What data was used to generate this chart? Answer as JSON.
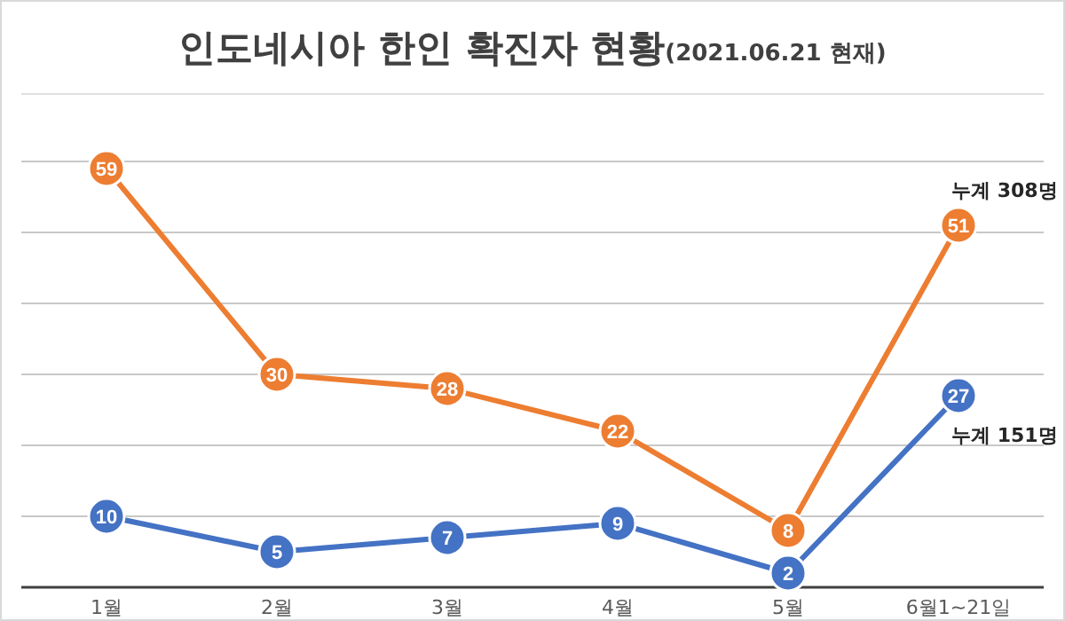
{
  "chart_data": {
    "type": "line",
    "title": "인도네시아 한인 확진자 현황(2021.06.21 현재)",
    "categories": [
      "1월",
      "2월",
      "3월",
      "4월",
      "5월",
      "6월1~21일"
    ],
    "series": [
      {
        "color": "#ed7d31",
        "values": [
          59,
          30,
          28,
          22,
          8,
          51
        ]
      },
      {
        "color": "#4472c4",
        "values": [
          10,
          5,
          7,
          9,
          2,
          27
        ]
      }
    ],
    "ylim": [
      0,
      60
    ],
    "yticks": [
      {
        "value": 0,
        "label": null
      },
      {
        "value": 10,
        "label": null
      },
      {
        "value": 20,
        "label": null
      },
      {
        "value": 30,
        "label": null
      },
      {
        "value": 40,
        "label": null
      },
      {
        "value": 50,
        "label": null
      },
      {
        "value": 60,
        "label": null
      }
    ],
    "tick_labels": "x",
    "grid": "y",
    "marker": "circle",
    "line_style": "solid",
    "data_labels": true,
    "annotations": [
      "누계 308명",
      "누계 151명"
    ]
  }
}
